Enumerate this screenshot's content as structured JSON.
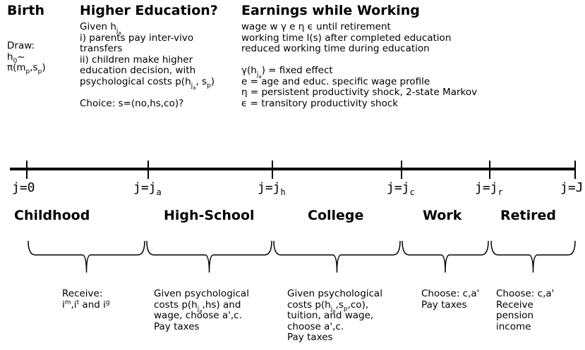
{
  "header": [
    {
      "title": "Birth",
      "paragraphs": [
        [
          [
            "Draw:"
          ],
          [
            "h",
            {
              "sub": "0"
            },
            "~"
          ],
          [
            "π(m",
            {
              "sub": "p"
            },
            ",s",
            {
              "sub": "p"
            },
            ")"
          ]
        ]
      ]
    },
    {
      "title": "Higher Education?",
      "paragraphs": [
        [
          [
            "Given h",
            {
              "sub": "j"
            },
            {
              "sub2": "a"
            }
          ],
          [
            "i) parents pay inter-vivo"
          ],
          [
            "transfers"
          ],
          [
            "ii) children make higher"
          ],
          [
            "education decision, with"
          ],
          [
            "psychological costs p(h",
            {
              "sub": "j"
            },
            {
              "sub2": "a"
            },
            ", s",
            {
              "sub": "p"
            },
            ")"
          ]
        ],
        [
          [
            "Choice: s=(no,hs,co)?"
          ]
        ]
      ]
    },
    {
      "title": "Earnings while Working",
      "paragraphs": [
        [
          [
            "wage w γ e η ϵ until retirement"
          ],
          [
            "working time l(s) after completed education"
          ],
          [
            "reduced working time during education"
          ]
        ],
        [
          [
            "γ(h",
            {
              "sub": "j"
            },
            {
              "sub2": "a"
            },
            ") = fixed effect"
          ],
          [
            "e = age and educ. specific wage profile"
          ],
          [
            "η = persistent productivity shock, 2-state Markov"
          ],
          [
            "ϵ = transitory productivity shock"
          ]
        ]
      ]
    }
  ],
  "timeline": [
    [
      "j=0"
    ],
    [
      "j=j",
      {
        "sub": "a"
      }
    ],
    [
      "j=j",
      {
        "sub": "h"
      }
    ],
    [
      "j=j",
      {
        "sub": "c"
      }
    ],
    [
      "j=j",
      {
        "sub": "r"
      }
    ],
    [
      "j=J"
    ]
  ],
  "periods": [
    {
      "name": "Childhood",
      "description": [
        [
          "Receive:"
        ],
        [
          "i",
          {
            "sup": "m"
          },
          ",i",
          {
            "sup": "t"
          },
          " and i",
          {
            "sup": "g"
          }
        ]
      ]
    },
    {
      "name": "High-School",
      "description": [
        [
          "Given psychological"
        ],
        [
          "costs p(h",
          {
            "sub": "j"
          },
          {
            "sub2": "a"
          },
          ",hs) and"
        ],
        [
          "wage, choose a',c."
        ],
        [
          "Pay taxes"
        ]
      ]
    },
    {
      "name": "College",
      "description": [
        [
          "Given psychological"
        ],
        [
          "costs p(h",
          {
            "sub": "j"
          },
          {
            "sub2": "a"
          },
          ",s",
          {
            "sub": "p"
          },
          ",co),"
        ],
        [
          "tuition, and wage,"
        ],
        [
          "choose a',c."
        ],
        [
          "Pay taxes"
        ]
      ]
    },
    {
      "name": "Work",
      "description": [
        [
          "Choose: c,a'"
        ],
        [
          "Pay taxes"
        ]
      ]
    },
    {
      "name": "Retired",
      "description": [
        [
          "Choose: c,a'"
        ],
        [
          "Receive"
        ],
        [
          "pension"
        ],
        [
          "income"
        ]
      ]
    }
  ]
}
